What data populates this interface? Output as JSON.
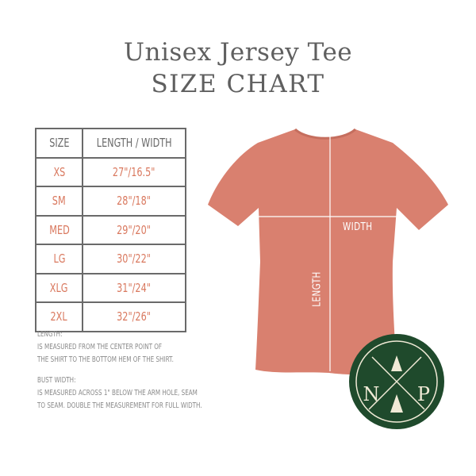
{
  "title": "Unisex Jersey Tee",
  "subtitle": "SIZE CHART",
  "table": {
    "headers": [
      "SIZE",
      "LENGTH / WIDTH"
    ],
    "rows": [
      [
        "XS",
        "27\"/16.5\""
      ],
      [
        "SM",
        "28\"/18\""
      ],
      [
        "MED",
        "29\"/20\""
      ],
      [
        "LG",
        "30\"/22\""
      ],
      [
        "XLG",
        "31\"/24\""
      ],
      [
        "2XL",
        "32\"/26\""
      ]
    ]
  },
  "notes": {
    "length_heading": "LENGTH:",
    "length_line1": "IS MEASURED FROM THE CENTER POINT OF",
    "length_line2": "THE SHIRT TO THE BOTTOM HEM OF THE SHIRT.",
    "width_heading": "BUST WIDTH:",
    "width_line1": "IS MEASURED ACROSS  1\" BELOW THE ARM HOLE, SEAM",
    "width_line2": "TO SEAM. DOUBLE THE MEASUREMENT FOR FULL WIDTH."
  },
  "shirt": {
    "color": "#d9806f",
    "width_label": "WIDTH",
    "length_label": "LENGTH"
  },
  "logo": {
    "text_left": "N",
    "text_right": "P",
    "color": "#1f4a2c"
  },
  "colors": {
    "value_text": "#d9785e",
    "header_text": "#6a6a6a",
    "title": "#5f5f5f"
  }
}
